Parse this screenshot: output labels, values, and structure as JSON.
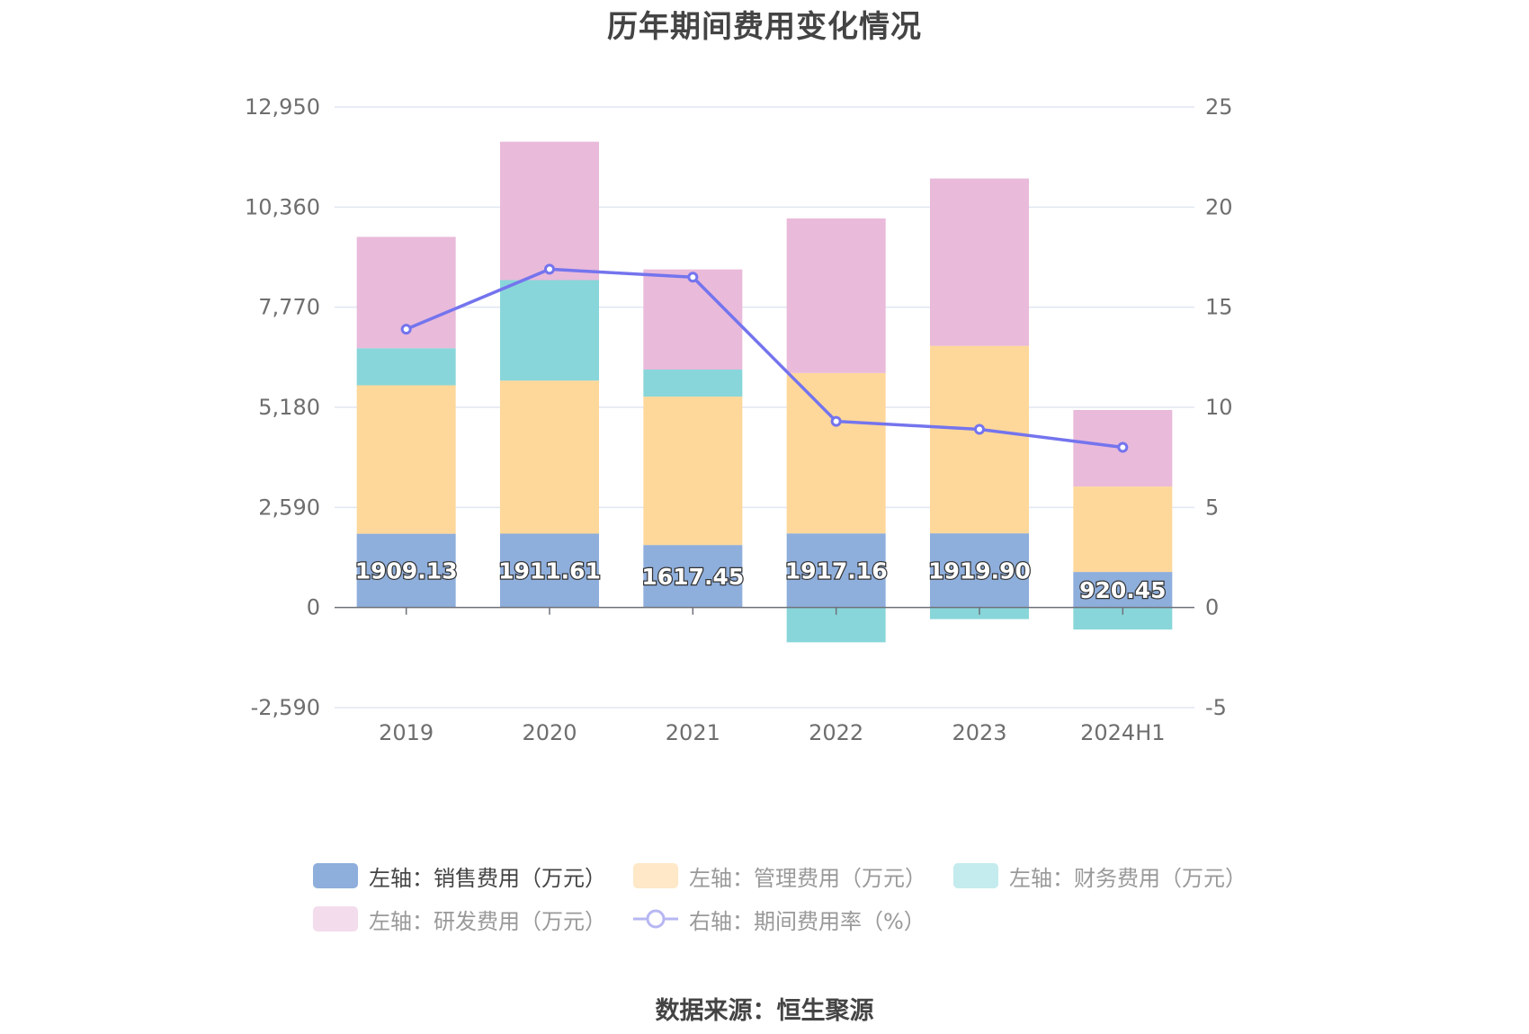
{
  "source_text": "数据来源：恒生聚源",
  "chart_data": {
    "type": "bar",
    "title": "历年期间费用变化情况",
    "categories": [
      "2019",
      "2020",
      "2021",
      "2022",
      "2023",
      "2024H1"
    ],
    "left_axis": {
      "ticks": [
        "12,950",
        "10,360",
        "7,770",
        "5,180",
        "2,590",
        "0",
        "-2,590"
      ],
      "tick_values": [
        12950,
        10360,
        7770,
        5180,
        2590,
        0,
        -2590
      ],
      "ylim": [
        -2590,
        12950
      ]
    },
    "right_axis": {
      "ticks": [
        "25",
        "20",
        "15",
        "10",
        "5",
        "0",
        "-5"
      ],
      "tick_values": [
        25,
        20,
        15,
        10,
        5,
        0,
        -5
      ],
      "ylim": [
        -5,
        25
      ]
    },
    "grid": true,
    "legend_position": "bottom",
    "stacked": true,
    "series": [
      {
        "name": "左轴：销售费用（万元）",
        "color": "#8eaedc",
        "axis": "left",
        "values": [
          1909.13,
          1911.61,
          1617.45,
          1917.16,
          1919.9,
          920.45
        ],
        "labels": [
          "1909.13",
          "1911.61",
          "1617.45",
          "1917.16",
          "1919.90",
          "920.45"
        ]
      },
      {
        "name": "左轴：管理费用（万元）",
        "color": "#fed89a",
        "axis": "left",
        "values": [
          3840,
          3960,
          3840,
          4150,
          4850,
          2210
        ]
      },
      {
        "name": "左轴：财务费用（万元）",
        "color": "#88d6da",
        "axis": "left",
        "values": [
          960,
          2600,
          700,
          -900,
          -300,
          -570
        ]
      },
      {
        "name": "左轴：研发费用（万元）",
        "color": "#e9bada",
        "axis": "left",
        "values": [
          2880,
          3580,
          2590,
          4000,
          4330,
          1980
        ]
      },
      {
        "name": "右轴：期间费用率（%）",
        "color": "#7474ee",
        "axis": "right",
        "type": "line",
        "values": [
          13.9,
          16.9,
          16.5,
          9.3,
          8.9,
          8.0
        ]
      }
    ]
  }
}
